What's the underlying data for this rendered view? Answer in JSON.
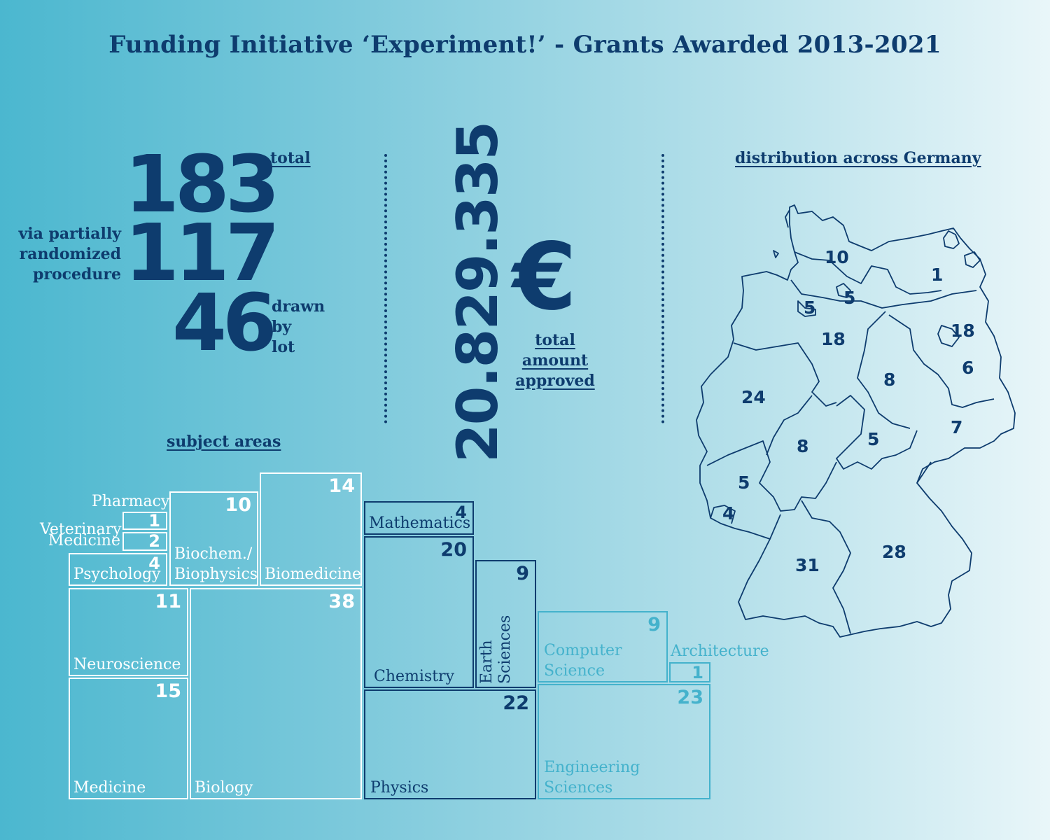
{
  "title": "Funding Initiative ‘Experiment!’ - Grants Awarded 2013-2021",
  "stats": {
    "total_value": "183",
    "total_label": "total",
    "randomized_value": "117",
    "randomized_label": [
      "via partially",
      "randomized",
      "procedure"
    ],
    "lot_value": "46",
    "lot_label": [
      "drawn",
      "by",
      "lot"
    ]
  },
  "amount": {
    "value": "20.829.335",
    "currency": "€",
    "label": [
      "total",
      "amount",
      "approved"
    ]
  },
  "map": {
    "heading": "distribution across Germany",
    "states": [
      {
        "name": "Schleswig-Holstein",
        "value": "10"
      },
      {
        "name": "Mecklenburg-Vorpommern",
        "value": "1"
      },
      {
        "name": "Hamburg",
        "value": "5"
      },
      {
        "name": "Bremen",
        "value": "5"
      },
      {
        "name": "Lower Saxony",
        "value": "18"
      },
      {
        "name": "Berlin",
        "value": "18"
      },
      {
        "name": "Brandenburg",
        "value": "6"
      },
      {
        "name": "Saxony-Anhalt",
        "value": "8"
      },
      {
        "name": "North Rhine-Westphalia",
        "value": "24"
      },
      {
        "name": "Saxony",
        "value": "7"
      },
      {
        "name": "Thuringia",
        "value": "5"
      },
      {
        "name": "Hesse",
        "value": "8"
      },
      {
        "name": "Rhineland-Palatinate",
        "value": "5"
      },
      {
        "name": "Saarland",
        "value": "4"
      },
      {
        "name": "Baden-Württemberg",
        "value": "31"
      },
      {
        "name": "Bavaria",
        "value": "28"
      }
    ]
  },
  "subjects": {
    "heading": "subject areas",
    "pharmacy": {
      "label": "Pharmacy",
      "value": "1"
    },
    "veterinary": {
      "label": [
        "Veterinary",
        "Medicine"
      ],
      "value": "2"
    },
    "psychology": {
      "label": "Psychology",
      "value": "4"
    },
    "biochem": {
      "label": [
        "Biochem./",
        "Biophysics"
      ],
      "value": "10"
    },
    "biomedicine": {
      "label": "Biomedicine",
      "value": "14"
    },
    "neuroscience": {
      "label": "Neuroscience",
      "value": "11"
    },
    "biology": {
      "label": "Biology",
      "value": "38"
    },
    "medicine": {
      "label": "Medicine",
      "value": "15"
    },
    "mathematics": {
      "label": "Mathematics",
      "value": "4"
    },
    "chemistry": {
      "label": "Chemistry",
      "value": "20"
    },
    "earth": {
      "label": [
        "Earth",
        "Sciences"
      ],
      "value": "9"
    },
    "physics": {
      "label": "Physics",
      "value": "22"
    },
    "computer": {
      "label": [
        "Computer",
        "Science"
      ],
      "value": "9"
    },
    "architecture": {
      "label": "Architecture",
      "value": "1"
    },
    "engineering": {
      "label": [
        "Engineering",
        "Sciences"
      ],
      "value": "23"
    }
  },
  "colors": {
    "navy": "#0e3c6e",
    "white": "#ffffff",
    "teal": "#44b2cc"
  }
}
